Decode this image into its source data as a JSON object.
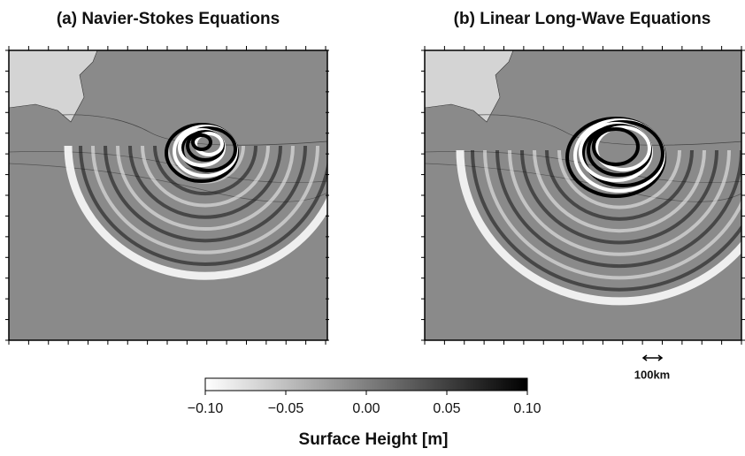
{
  "panels": [
    {
      "title": "(a) Navier-Stokes Equations"
    },
    {
      "title": "(b) Linear Long-Wave Equations"
    }
  ],
  "colorbar": {
    "label": "Surface Height [m]",
    "clim": [
      -0.1,
      0.1
    ],
    "colors": [
      "#ffffff",
      "#000000"
    ],
    "ticks": [
      {
        "value": -0.1,
        "label": "−0.10"
      },
      {
        "value": -0.05,
        "label": "−0.05"
      },
      {
        "value": 0,
        "label": "0.00"
      },
      {
        "value": 0.05,
        "label": "0.05"
      },
      {
        "value": 0.1,
        "label": "0.10"
      }
    ]
  },
  "scale_bar": {
    "label": "100km"
  }
}
